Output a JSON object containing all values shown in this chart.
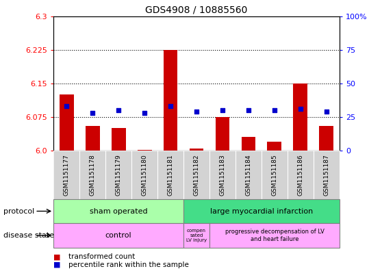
{
  "title": "GDS4908 / 10885560",
  "samples": [
    "GSM1151177",
    "GSM1151178",
    "GSM1151179",
    "GSM1151180",
    "GSM1151181",
    "GSM1151182",
    "GSM1151183",
    "GSM1151184",
    "GSM1151185",
    "GSM1151186",
    "GSM1151187"
  ],
  "transformed_counts": [
    6.125,
    6.055,
    6.05,
    6.001,
    6.225,
    6.005,
    6.075,
    6.03,
    6.02,
    6.15,
    6.055
  ],
  "percentile_ranks": [
    33,
    28,
    30,
    28,
    33,
    29,
    30,
    30,
    30,
    31,
    29
  ],
  "ylim": [
    6.0,
    6.3
  ],
  "yticks_left": [
    6.0,
    6.075,
    6.15,
    6.225,
    6.3
  ],
  "yticks_right_vals": [
    0,
    25,
    50,
    75,
    100
  ],
  "yticks_right_labels": [
    "0",
    "25",
    "50",
    "75",
    "100%"
  ],
  "bar_color": "#cc0000",
  "dot_color": "#0000cc",
  "bar_base": 6.0,
  "sham_color": "#aaffaa",
  "lmi_color": "#44dd88",
  "disease_color": "#ffaaff",
  "bg_color": "#d3d3d3",
  "legend_bar_label": "transformed count",
  "legend_dot_label": "percentile rank within the sample"
}
